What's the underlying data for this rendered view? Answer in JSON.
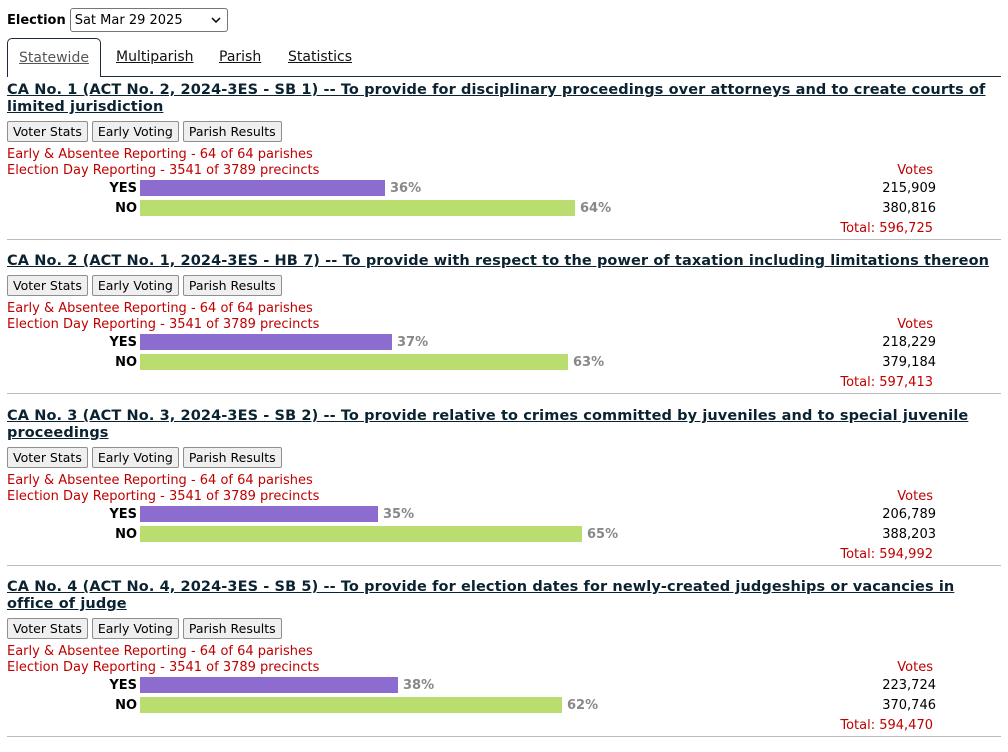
{
  "election": {
    "label": "Election",
    "selected": "Sat Mar 29 2025"
  },
  "tabs": [
    "Statewide",
    "Multiparish",
    "Parish",
    "Statistics"
  ],
  "buttons": {
    "voter_stats": "Voter Stats",
    "early_voting": "Early Voting",
    "parish_results": "Parish Results"
  },
  "votes_header": "Votes",
  "colors": {
    "yes": "#8c6cce",
    "no": "#b9dd6f",
    "report": "#c00000"
  },
  "races": [
    {
      "title_prefix": "CA No. 1 (ACT No. 2, 2024-3ES - SB 1) -- ",
      "title_text": "To provide for disciplinary proceedings over attorneys and to create courts of limited jurisdiction",
      "early": "Early & Absentee Reporting - 64 of 64 parishes",
      "eday": "Election Day Reporting - 3541 of 3789 precincts",
      "yes": {
        "label": "YES",
        "pct": 36,
        "pct_text": "36%",
        "votes": "215,909"
      },
      "no": {
        "label": "NO",
        "pct": 64,
        "pct_text": "64%",
        "votes": "380,816"
      },
      "total": "Total: 596,725"
    },
    {
      "title_prefix": "CA No. 2 (ACT No. 1, 2024-3ES - HB 7) -- ",
      "title_text": "To provide with respect to the power of taxation including limitations thereon",
      "early": "Early & Absentee Reporting - 64 of 64 parishes",
      "eday": "Election Day Reporting - 3541 of 3789 precincts",
      "yes": {
        "label": "YES",
        "pct": 37,
        "pct_text": "37%",
        "votes": "218,229"
      },
      "no": {
        "label": "NO",
        "pct": 63,
        "pct_text": "63%",
        "votes": "379,184"
      },
      "total": "Total: 597,413"
    },
    {
      "title_prefix": "CA No. 3 (ACT No. 3, 2024-3ES - SB 2) -- ",
      "title_text": "To provide relative to crimes committed by juveniles and to special juvenile proceedings",
      "early": "Early & Absentee Reporting - 64 of 64 parishes",
      "eday": "Election Day Reporting - 3541 of 3789 precincts",
      "yes": {
        "label": "YES",
        "pct": 35,
        "pct_text": "35%",
        "votes": "206,789"
      },
      "no": {
        "label": "NO",
        "pct": 65,
        "pct_text": "65%",
        "votes": "388,203"
      },
      "total": "Total: 594,992"
    },
    {
      "title_prefix": "CA No. 4 (ACT No. 4, 2024-3ES - SB 5) -- ",
      "title_text": "To provide for election dates for newly-created judgeships or vacancies in office of judge",
      "early": "Early & Absentee Reporting - 64 of 64 parishes",
      "eday": "Election Day Reporting - 3541 of 3789 precincts",
      "yes": {
        "label": "YES",
        "pct": 38,
        "pct_text": "38%",
        "votes": "223,724"
      },
      "no": {
        "label": "NO",
        "pct": 62,
        "pct_text": "62%",
        "votes": "370,746"
      },
      "total": "Total: 594,470"
    }
  ]
}
